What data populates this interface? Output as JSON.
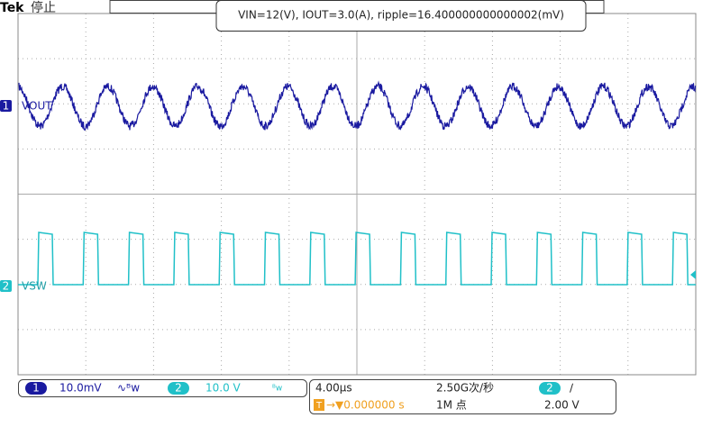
{
  "header": {
    "brand": "Tek",
    "status": "停止",
    "measurement": "VIN=12(V), IOUT=3.0(A), ripple=16.400000000000002(mV)"
  },
  "channels": [
    {
      "number": "1",
      "label": "VOUT",
      "scale": "10.0mV",
      "bw": "∿ᴮw"
    },
    {
      "number": "2",
      "label": "VSW",
      "scale": "10.0 V",
      "bw": "ᴮw"
    }
  ],
  "timebase": {
    "scale": "4.00μs",
    "sample_rate": "2.50G次/秒",
    "trigger_icon": "T",
    "trigger_position": "→▼0.000000 s",
    "record_length": "1M 点",
    "trigger_source": "2",
    "trigger_slope": "∕",
    "trigger_level": "2.00 V"
  }
}
